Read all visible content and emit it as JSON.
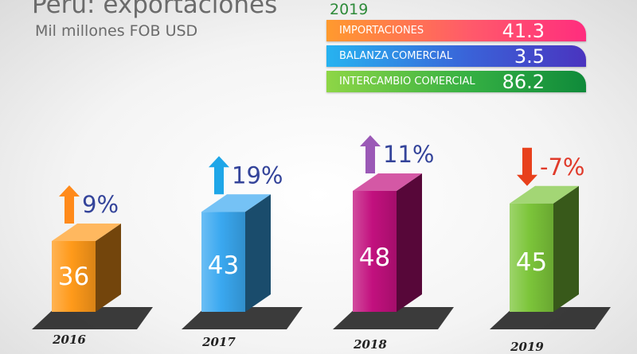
{
  "title": "Peru: exportaciones",
  "subtitle": "Mil millones FOB USD",
  "stats": {
    "year": "2019",
    "items": [
      {
        "label": "IMPORTACIONES",
        "value": "41.3"
      },
      {
        "label": "BALANZA COMERCIAL",
        "value": "3.5"
      },
      {
        "label": "INTERCAMBIO COMERCIAL",
        "value": "86.2"
      }
    ]
  },
  "chart_data": {
    "type": "bar",
    "categories": [
      "2016",
      "2017",
      "2018",
      "2019"
    ],
    "values": [
      36,
      43,
      48,
      45
    ],
    "changes": [
      "9%",
      "19%",
      "11%",
      "-7%"
    ],
    "change_direction": [
      "up",
      "up",
      "up",
      "down"
    ],
    "colors": {
      "bars": [
        "#ff9a1a",
        "#3aa8f0",
        "#c2107e",
        "#7cc53a"
      ],
      "arrows": [
        "#ff8a1a",
        "#1ea6e8",
        "#9b59b6",
        "#e8401c"
      ],
      "pct_up": "#34449a",
      "pct_down": "#e03a2a"
    },
    "title": "Peru: exportaciones",
    "ylabel": "Mil millones FOB USD"
  }
}
